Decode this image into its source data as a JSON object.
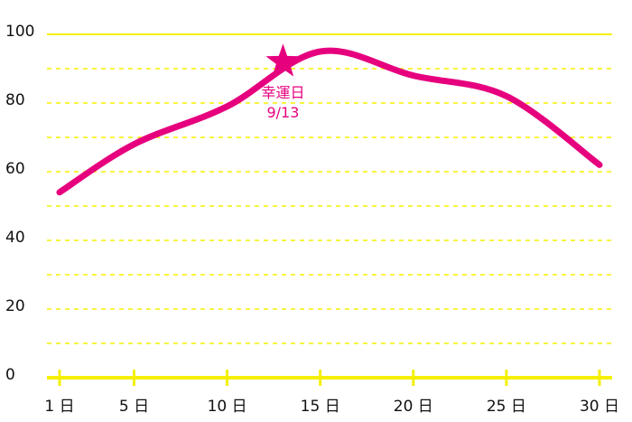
{
  "chart_data": {
    "type": "line",
    "x": [
      1,
      5,
      10,
      15,
      20,
      25,
      30
    ],
    "series": [
      {
        "color": "#e6007e",
        "values": [
          54,
          68,
          79,
          95,
          88,
          82,
          62
        ]
      }
    ],
    "xlim": [
      1,
      30
    ],
    "xticks": [
      {
        "value": 1,
        "label": "1 日"
      },
      {
        "value": 5,
        "label": "5 日"
      },
      {
        "value": 10,
        "label": "10 日"
      },
      {
        "value": 15,
        "label": "15 日"
      },
      {
        "value": 20,
        "label": "20 日"
      },
      {
        "value": 25,
        "label": "25 日"
      },
      {
        "value": 30,
        "label": "30 日"
      }
    ],
    "ylim": [
      0,
      100
    ],
    "yticks": [
      0,
      20,
      40,
      60,
      80,
      100
    ],
    "minor_yticks": [
      10,
      30,
      50,
      70,
      90
    ],
    "grid": true,
    "grid_color": "#f5f000",
    "annotation": {
      "x": 13,
      "y": 92,
      "label": "幸運日",
      "date": "9/13",
      "color": "#e6007e"
    }
  }
}
